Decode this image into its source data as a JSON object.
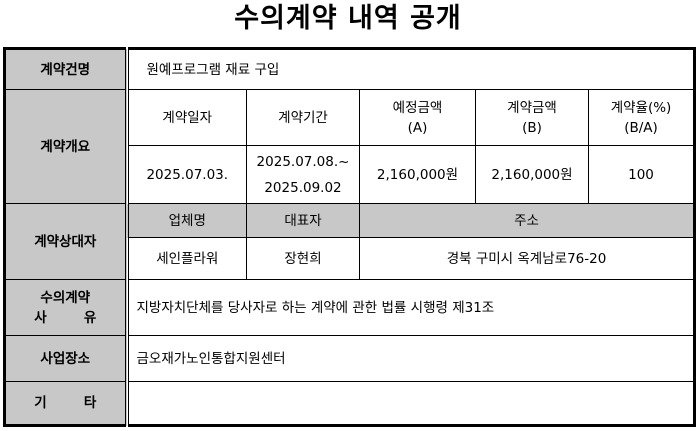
{
  "title": "수의계약 내역 공개",
  "rows": {
    "contract_name": {
      "label": "계약건명",
      "value": "원예프로그램 재료 구입"
    },
    "overview": {
      "label": "계약개요",
      "headers": [
        "계약일자",
        "계약기간",
        "예정금액",
        "계약금액",
        "계약율(%)"
      ],
      "header_subs": [
        "",
        "",
        "(A)",
        "(B)",
        "(B/A)"
      ],
      "contract_date": "2025.07.03.",
      "period_start": "2025.07.08.~",
      "period_end": "2025.09.02",
      "estimated_amount": "2,160,000원",
      "contract_amount": "2,160,000원",
      "rate": "100"
    },
    "counterparty": {
      "label": "계약상대자",
      "headers": [
        "업체명",
        "대표자",
        "주소"
      ],
      "company": "세인플라워",
      "representative": "장현희",
      "address": "경북 구미시 옥계남로76-20"
    },
    "reason": {
      "label_line1": "수의계약",
      "label_a": "사",
      "label_b": "유",
      "value": "지방자치단체를 당사자로 하는 계약에 관한 법률 시행령 제31조"
    },
    "location": {
      "label": "사업장소",
      "value": "금오재가노인통합지원센터"
    },
    "etc": {
      "label_a": "기",
      "label_b": "타",
      "value": ""
    }
  }
}
